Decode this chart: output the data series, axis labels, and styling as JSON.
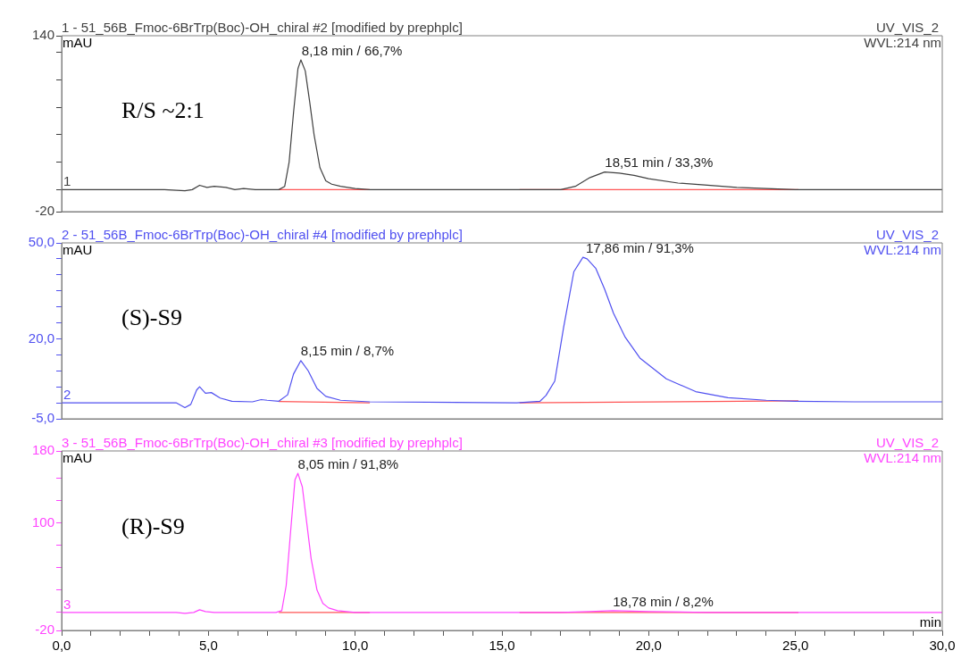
{
  "chart_data": [
    {
      "type": "line",
      "title": "1 - 51_56B_Fmoc-6BrTrp(Boc)-OH_chiral #2 [modified by prephplc]",
      "subtitle": "UV_VIS_2",
      "ylabel": "mAU",
      "xlim": [
        0,
        30
      ],
      "ylim": [
        -20,
        140
      ],
      "yticks": [
        -20,
        {
          "value": 0,
          "label": null
        },
        {
          "value": 25,
          "label": null
        },
        {
          "value": 50,
          "label": null
        },
        {
          "value": 75,
          "label": null
        },
        {
          "value": 100,
          "label": null
        },
        {
          "value": 125,
          "label": null
        },
        140
      ],
      "tick_labels": "y",
      "marker": "none",
      "line_style": "solid",
      "series": [
        {
          "color": "#404040",
          "x": [
            0,
            3.5,
            4.2,
            4.45,
            4.7,
            4.95,
            5.2,
            5.6,
            5.9,
            6.2,
            6.6,
            7.0,
            7.4,
            7.6,
            7.75,
            7.9,
            8.05,
            8.15,
            8.3,
            8.45,
            8.6,
            8.8,
            9.0,
            9.2,
            9.5,
            10.0,
            10.5,
            15.5,
            17.0,
            17.5,
            18.0,
            18.5,
            19.0,
            19.5,
            20.0,
            21.0,
            22.0,
            23.0,
            24.0,
            25.0,
            27.0,
            30.0
          ],
          "values": [
            0,
            0,
            -1,
            0,
            4,
            2,
            3,
            2,
            0,
            1,
            0,
            0,
            0,
            3,
            25,
            70,
            110,
            118,
            108,
            80,
            50,
            20,
            8,
            5,
            3,
            1,
            0,
            0,
            0,
            3,
            11,
            16,
            15,
            13,
            10,
            6,
            4,
            2,
            1,
            0,
            0,
            0
          ]
        },
        {
          "type": "line",
          "color": "#ff5555",
          "x": [
            7.4,
            10.5,
            null,
            15.6,
            25.1
          ],
          "values": [
            0,
            0,
            null,
            0,
            0
          ]
        }
      ],
      "annotations": [
        "WVL:214 nm",
        "R/S ~2:1",
        {
          "text": "1",
          "x": 0,
          "y": 0
        },
        {
          "text": "8,18 min / 66,7%",
          "x": 8.18,
          "y": 118
        },
        {
          "text": "18,51 min / 33,3%",
          "x": 18.51,
          "y": 16
        }
      ]
    },
    {
      "type": "line",
      "title": "2 - 51_56B_Fmoc-6BrTrp(Boc)-OH_chiral #4 [modified by prephplc]",
      "subtitle": "UV_VIS_2",
      "ylabel": "mAU",
      "xlim": [
        0,
        30
      ],
      "ylim": [
        -5,
        50
      ],
      "yticks": [
        {
          "value": -5,
          "label": "-5,0"
        },
        {
          "value": 0,
          "label": null
        },
        {
          "value": 5,
          "label": null
        },
        {
          "value": 10,
          "label": null
        },
        {
          "value": 15,
          "label": null
        },
        {
          "value": 20,
          "label": "20,0"
        },
        {
          "value": 25,
          "label": null
        },
        {
          "value": 30,
          "label": null
        },
        {
          "value": 35,
          "label": null
        },
        {
          "value": 40,
          "label": null
        },
        {
          "value": 45,
          "label": null
        },
        {
          "value": 50,
          "label": "50,0"
        }
      ],
      "tick_labels": "y",
      "marker": "none",
      "line_style": "solid",
      "series": [
        {
          "color": "#5050f0",
          "x": [
            0,
            3.9,
            4.2,
            4.4,
            4.6,
            4.7,
            4.9,
            5.1,
            5.4,
            5.8,
            6.5,
            6.8,
            7.0,
            7.4,
            7.7,
            7.9,
            8.15,
            8.4,
            8.7,
            9.0,
            9.5,
            10.5,
            15.5,
            16.3,
            16.5,
            16.8,
            17.1,
            17.45,
            17.76,
            17.9,
            18.2,
            18.5,
            18.8,
            19.2,
            19.7,
            20.6,
            21.6,
            22.7,
            24.0,
            25.0,
            27.0,
            30.0
          ],
          "values": [
            0,
            0,
            -1.5,
            -0.5,
            4,
            5,
            3,
            3.2,
            1.5,
            0.5,
            0.3,
            1,
            0.8,
            0.5,
            2.5,
            9,
            13.2,
            10,
            4.5,
            2,
            0.8,
            0.3,
            0,
            0.5,
            2.3,
            6.8,
            23.5,
            41,
            45.5,
            45,
            42,
            35.5,
            28,
            20.5,
            14,
            7.5,
            3.5,
            1.6,
            0.8,
            0.5,
            0.3,
            0.3
          ]
        },
        {
          "type": "line",
          "color": "#ff5555",
          "x": [
            7.4,
            10.5,
            null,
            15.6,
            25.1
          ],
          "values": [
            0.4,
            0,
            null,
            0,
            0.6
          ]
        }
      ],
      "annotations": [
        "WVL:214 nm",
        "(S)-S9",
        {
          "text": "2",
          "x": 0,
          "y": 0
        },
        {
          "text": "8,15 min / 8,7%",
          "x": 8.15,
          "y": 13.2
        },
        {
          "text": "17,86 min / 91,3%",
          "x": 17.86,
          "y": 45.5
        }
      ]
    },
    {
      "type": "line",
      "title": "3 - 51_56B_Fmoc-6BrTrp(Boc)-OH_chiral #3 [modified by prephplc]",
      "subtitle": "UV_VIS_2",
      "ylabel": "mAU",
      "xlabel": "min",
      "xlim": [
        0,
        30
      ],
      "ylim": [
        -20,
        180
      ],
      "xticks": [
        {
          "value": 0,
          "label": "0,0"
        },
        {
          "value": 1,
          "label": null
        },
        {
          "value": 2,
          "label": null
        },
        {
          "value": 3,
          "label": null
        },
        {
          "value": 4,
          "label": null
        },
        {
          "value": 5,
          "label": "5,0"
        },
        {
          "value": 6,
          "label": null
        },
        {
          "value": 7,
          "label": null
        },
        {
          "value": 8,
          "label": null
        },
        {
          "value": 9,
          "label": null
        },
        {
          "value": 10,
          "label": "10,0"
        },
        {
          "value": 11,
          "label": null
        },
        {
          "value": 12,
          "label": null
        },
        {
          "value": 13,
          "label": null
        },
        {
          "value": 14,
          "label": null
        },
        {
          "value": 15,
          "label": "15,0"
        },
        {
          "value": 16,
          "label": null
        },
        {
          "value": 17,
          "label": null
        },
        {
          "value": 18,
          "label": null
        },
        {
          "value": 19,
          "label": null
        },
        {
          "value": 20,
          "label": "20,0"
        },
        {
          "value": 21,
          "label": null
        },
        {
          "value": 22,
          "label": null
        },
        {
          "value": 23,
          "label": null
        },
        {
          "value": 24,
          "label": null
        },
        {
          "value": 25,
          "label": "25,0"
        },
        {
          "value": 26,
          "label": null
        },
        {
          "value": 27,
          "label": null
        },
        {
          "value": 28,
          "label": null
        },
        {
          "value": 29,
          "label": null
        },
        {
          "value": 30,
          "label": "30,0"
        }
      ],
      "yticks": [
        -20,
        {
          "value": 0,
          "label": null
        },
        {
          "value": 25,
          "label": null
        },
        {
          "value": 50,
          "label": null
        },
        {
          "value": 75,
          "label": null
        },
        100,
        {
          "value": 125,
          "label": null
        },
        {
          "value": 150,
          "label": null
        },
        180
      ],
      "marker": "none",
      "line_style": "solid",
      "series": [
        {
          "color": "#ff44ff",
          "x": [
            0,
            3.9,
            4.2,
            4.5,
            4.7,
            4.9,
            5.2,
            7.0,
            7.3,
            7.5,
            7.65,
            7.8,
            7.95,
            8.05,
            8.2,
            8.35,
            8.5,
            8.7,
            8.9,
            9.1,
            9.4,
            10.0,
            10.5,
            17.0,
            18.0,
            18.78,
            20.0,
            22.0,
            30.0
          ],
          "values": [
            0,
            0,
            -1,
            0,
            3,
            1,
            0,
            0,
            0,
            2,
            30,
            90,
            148,
            155,
            140,
            100,
            60,
            25,
            10,
            5,
            2,
            0,
            0,
            0,
            1,
            2,
            1,
            0,
            0
          ]
        },
        {
          "type": "line",
          "color": "#ff5555",
          "x": [
            7.4,
            10.5,
            null,
            15.6,
            25.1
          ],
          "values": [
            0,
            0,
            null,
            0,
            0
          ]
        }
      ],
      "annotations": [
        "WVL:214 nm",
        "(R)-S9",
        {
          "text": "3",
          "x": 0,
          "y": 0
        },
        {
          "text": "8,05 min / 91,8%",
          "x": 8.05,
          "y": 155
        },
        {
          "text": "18,78 min / 8,2%",
          "x": 18.78,
          "y": 2
        }
      ]
    }
  ]
}
